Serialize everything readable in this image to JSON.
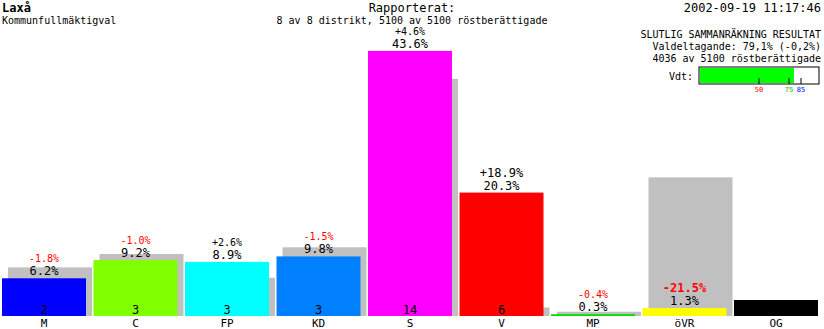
{
  "chart_data": {
    "type": "bar",
    "title": "Laxå",
    "subtitle": "Kommunfullmäktigval",
    "categories": [
      "M",
      "C",
      "FP",
      "KD",
      "S",
      "V",
      "MP",
      "öVR",
      "OG"
    ],
    "values": [
      6.2,
      9.2,
      8.9,
      9.8,
      43.6,
      20.3,
      0.3,
      1.3,
      null
    ],
    "value_labels": [
      "6.2%",
      "9.2%",
      "8.9%",
      "9.8%",
      "43.6%",
      "20.3%",
      "0.3%",
      "1.3%",
      null
    ],
    "previous": [
      8.0,
      10.2,
      6.3,
      11.3,
      39.0,
      1.4,
      0.7,
      22.8,
      null
    ],
    "changes": [
      -1.8,
      -1.0,
      2.6,
      -1.5,
      4.6,
      18.9,
      -0.4,
      -21.5,
      null
    ],
    "change_labels": [
      "-1.8%",
      "-1.0%",
      "+2.6%",
      "-1.5%",
      "+4.6%",
      "+18.9%",
      "-0.4%",
      "-21.5%",
      null
    ],
    "seats": [
      2,
      3,
      3,
      3,
      14,
      6,
      null,
      null,
      null
    ],
    "colors": [
      "#0000ff",
      "#80ff00",
      "#00ffff",
      "#0080ff",
      "#ff00ff",
      "#ff0000",
      "#00e000",
      "#ffff00",
      "#000000"
    ],
    "ylim": [
      0,
      50
    ],
    "data_labels": true,
    "tick_labels": "x"
  },
  "header": {
    "report": "Rapporterat:",
    "districts": "8 av 8 distrikt, 5100 av 5100 röstberättigade",
    "timestamp": "2002-09-19 11:17:46",
    "status": "SLUTLIG SAMMANRÄKNING RESULTAT",
    "turnout_text": "Valdeltagande: 79,1% (-0,2%)",
    "voters": "4036 av 5100 röstberättigade"
  },
  "gauge": {
    "label": "Vdt:",
    "value": 79.1,
    "range": [
      0,
      100
    ],
    "ticks": [
      50,
      75,
      85
    ],
    "colors": [
      "#ff0000",
      "#00c000",
      "#0000ff"
    ]
  }
}
